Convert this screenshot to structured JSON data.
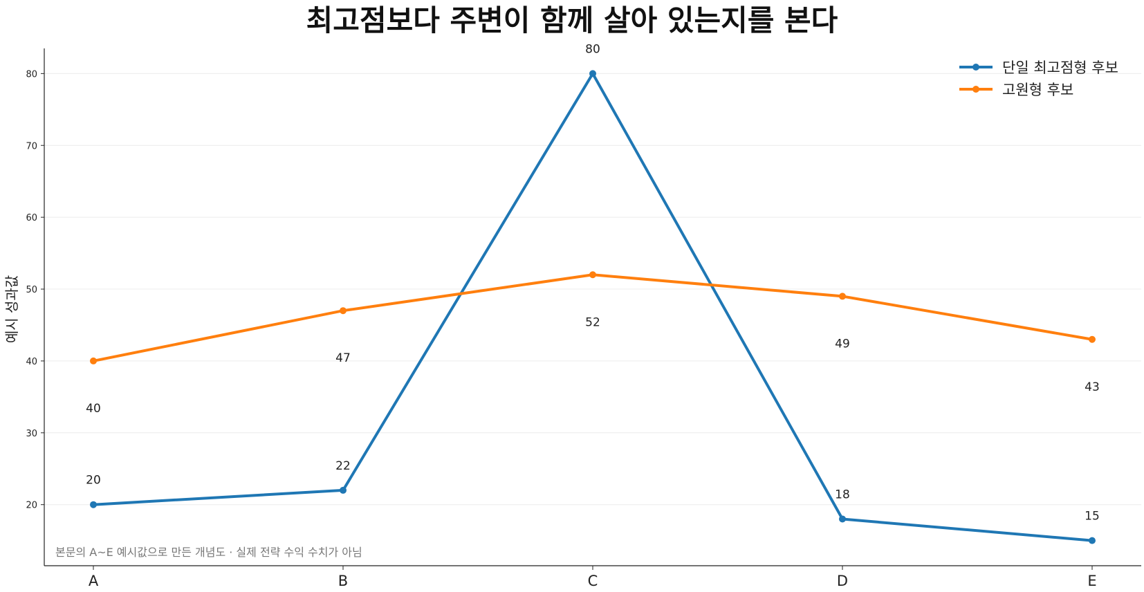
{
  "chart_data": {
    "type": "line",
    "title": "최고점보다 주변이 함께 살아 있는지를 본다",
    "xlabel": "",
    "ylabel": "예시 성과값",
    "categories": [
      "A",
      "B",
      "C",
      "D",
      "E"
    ],
    "ylim": [
      11.5,
      83.5
    ],
    "yticks": [
      20,
      30,
      40,
      50,
      60,
      70,
      80
    ],
    "grid": "horizontal",
    "legend_position": "top-right",
    "series": [
      {
        "name": "단일 최고점형 후보",
        "color": "#1f77b4",
        "values": [
          20,
          22,
          80,
          18,
          15
        ],
        "label_position": "above"
      },
      {
        "name": "고원형 후보",
        "color": "#ff7f0e",
        "values": [
          40,
          47,
          52,
          49,
          43
        ],
        "label_position": "below"
      }
    ],
    "annotation": "본문의 A~E 예시값으로 만든 개념도 · 실제 전략 수익 수치가 아님"
  }
}
